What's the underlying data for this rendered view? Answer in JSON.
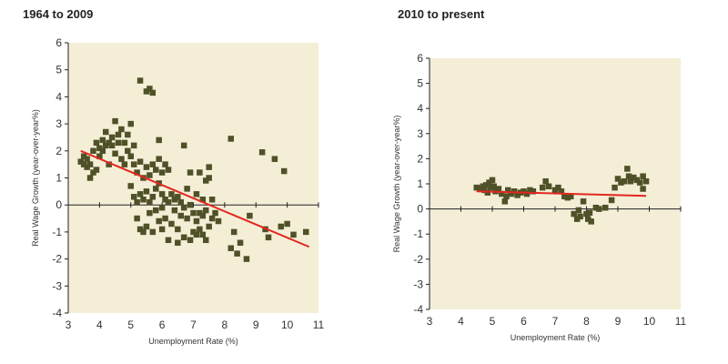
{
  "colors": {
    "plot_bg": "#f4eed7",
    "marker": "#4f5128",
    "trend": "#e3271f",
    "axis": "#222222"
  },
  "chart_data": [
    {
      "type": "scatter",
      "title": "1964 to 2009",
      "xlabel": "Unemployment Rate (%)",
      "ylabel": "Real Wage Growth (year-over-year%)",
      "xlim": [
        3,
        11
      ],
      "ylim": [
        -4,
        6
      ],
      "xticks": [
        3,
        4,
        5,
        6,
        7,
        8,
        9,
        10,
        11
      ],
      "yticks": [
        -4,
        -3,
        -2,
        -1,
        0,
        1,
        2,
        3,
        4,
        5,
        6
      ],
      "marker": "square",
      "grid": false,
      "trendline": {
        "x": [
          3.4,
          10.7
        ],
        "y": [
          2.0,
          -1.55
        ]
      },
      "points": [
        [
          3.4,
          1.6
        ],
        [
          3.5,
          1.5
        ],
        [
          3.5,
          1.8
        ],
        [
          3.6,
          1.4
        ],
        [
          3.6,
          1.7
        ],
        [
          3.7,
          1.0
        ],
        [
          3.7,
          1.5
        ],
        [
          3.8,
          1.2
        ],
        [
          3.8,
          2.0
        ],
        [
          3.9,
          1.3
        ],
        [
          3.9,
          2.3
        ],
        [
          4.0,
          1.8
        ],
        [
          4.0,
          2.1
        ],
        [
          4.1,
          2.4
        ],
        [
          4.1,
          2.0
        ],
        [
          4.2,
          2.2
        ],
        [
          4.2,
          2.7
        ],
        [
          4.3,
          2.3
        ],
        [
          4.3,
          1.5
        ],
        [
          4.4,
          2.5
        ],
        [
          4.4,
          2.2
        ],
        [
          4.5,
          3.1
        ],
        [
          4.5,
          1.9
        ],
        [
          4.6,
          2.3
        ],
        [
          4.6,
          2.6
        ],
        [
          4.7,
          1.7
        ],
        [
          4.7,
          2.8
        ],
        [
          4.8,
          2.3
        ],
        [
          4.8,
          1.5
        ],
        [
          4.9,
          2.0
        ],
        [
          4.9,
          2.6
        ],
        [
          5.0,
          1.8
        ],
        [
          5.0,
          3.0
        ],
        [
          5.0,
          0.7
        ],
        [
          5.1,
          1.5
        ],
        [
          5.1,
          0.3
        ],
        [
          5.1,
          2.2
        ],
        [
          5.2,
          0.1
        ],
        [
          5.2,
          -0.5
        ],
        [
          5.2,
          1.2
        ],
        [
          5.3,
          0.4
        ],
        [
          5.3,
          -0.9
        ],
        [
          5.3,
          1.6
        ],
        [
          5.3,
          4.6
        ],
        [
          5.4,
          -1.0
        ],
        [
          5.4,
          0.2
        ],
        [
          5.4,
          1.0
        ],
        [
          5.5,
          4.2
        ],
        [
          5.5,
          0.5
        ],
        [
          5.5,
          -0.8
        ],
        [
          5.5,
          1.4
        ],
        [
          5.6,
          4.3
        ],
        [
          5.6,
          0.1
        ],
        [
          5.6,
          -0.3
        ],
        [
          5.6,
          1.1
        ],
        [
          5.7,
          4.15
        ],
        [
          5.7,
          0.3
        ],
        [
          5.7,
          -1.0
        ],
        [
          5.7,
          1.5
        ],
        [
          5.8,
          0.6
        ],
        [
          5.8,
          -0.2
        ],
        [
          5.8,
          1.3
        ],
        [
          5.9,
          -0.6
        ],
        [
          5.9,
          0.8
        ],
        [
          5.9,
          2.4
        ],
        [
          5.9,
          1.7
        ],
        [
          6.0,
          -0.9
        ],
        [
          6.0,
          0.4
        ],
        [
          6.0,
          1.2
        ],
        [
          6.0,
          -0.1
        ],
        [
          6.1,
          1.5
        ],
        [
          6.1,
          0.2
        ],
        [
          6.1,
          -0.5
        ],
        [
          6.2,
          1.3
        ],
        [
          6.2,
          0.1
        ],
        [
          6.2,
          -1.3
        ],
        [
          6.3,
          0.4
        ],
        [
          6.3,
          -0.7
        ],
        [
          6.4,
          0.2
        ],
        [
          6.4,
          -0.2
        ],
        [
          6.5,
          -0.9
        ],
        [
          6.5,
          0.3
        ],
        [
          6.5,
          -1.4
        ],
        [
          6.6,
          -0.4
        ],
        [
          6.6,
          0.1
        ],
        [
          6.7,
          -1.2
        ],
        [
          6.7,
          2.2
        ],
        [
          6.7,
          -0.1
        ],
        [
          6.8,
          0.6
        ],
        [
          6.8,
          -0.5
        ],
        [
          6.9,
          -1.3
        ],
        [
          6.9,
          0.0
        ],
        [
          6.9,
          1.2
        ],
        [
          7.0,
          -0.3
        ],
        [
          7.0,
          -1.0
        ],
        [
          7.1,
          -0.6
        ],
        [
          7.1,
          -1.1
        ],
        [
          7.1,
          0.4
        ],
        [
          7.2,
          -0.9
        ],
        [
          7.2,
          -0.3
        ],
        [
          7.2,
          1.2
        ],
        [
          7.3,
          -1.1
        ],
        [
          7.3,
          -0.4
        ],
        [
          7.3,
          0.2
        ],
        [
          7.4,
          -1.3
        ],
        [
          7.4,
          -0.2
        ],
        [
          7.4,
          0.9
        ],
        [
          7.5,
          -0.8
        ],
        [
          7.5,
          1.0
        ],
        [
          7.5,
          1.4
        ],
        [
          7.6,
          0.2
        ],
        [
          7.6,
          -0.5
        ],
        [
          7.7,
          -0.3
        ],
        [
          7.8,
          -0.6
        ],
        [
          8.2,
          2.45
        ],
        [
          8.2,
          -1.6
        ],
        [
          8.3,
          -1.0
        ],
        [
          8.4,
          -1.8
        ],
        [
          8.5,
          -1.4
        ],
        [
          8.7,
          -2.0
        ],
        [
          8.8,
          -0.4
        ],
        [
          9.2,
          1.95
        ],
        [
          9.3,
          -0.9
        ],
        [
          9.4,
          -1.2
        ],
        [
          9.6,
          1.7
        ],
        [
          9.8,
          -0.8
        ],
        [
          9.9,
          1.25
        ],
        [
          10.0,
          -0.7
        ],
        [
          10.2,
          -1.1
        ],
        [
          10.6,
          -1.0
        ]
      ]
    },
    {
      "type": "scatter",
      "title": "2010 to present",
      "xlabel": "Unemployment Rate (%)",
      "ylabel": "Real Wage Growth (year-over-year%)",
      "xlim": [
        3,
        11
      ],
      "ylim": [
        -4,
        6
      ],
      "xticks": [
        3,
        4,
        5,
        6,
        7,
        8,
        9,
        10,
        11
      ],
      "yticks": [
        -4,
        -3,
        -2,
        -1,
        0,
        1,
        2,
        3,
        4,
        5,
        6
      ],
      "marker": "square",
      "grid": false,
      "trendline": {
        "x": [
          4.5,
          9.9
        ],
        "y": [
          0.7,
          0.52
        ]
      },
      "points": [
        [
          4.5,
          0.85
        ],
        [
          4.6,
          0.8
        ],
        [
          4.7,
          0.9
        ],
        [
          4.75,
          0.75
        ],
        [
          4.8,
          0.95
        ],
        [
          4.85,
          0.65
        ],
        [
          4.9,
          1.05
        ],
        [
          4.95,
          0.85
        ],
        [
          5.0,
          1.15
        ],
        [
          5.05,
          0.9
        ],
        [
          5.1,
          0.7
        ],
        [
          5.2,
          0.8
        ],
        [
          5.3,
          0.6
        ],
        [
          5.4,
          0.3
        ],
        [
          5.45,
          0.5
        ],
        [
          5.5,
          0.75
        ],
        [
          5.6,
          0.6
        ],
        [
          5.7,
          0.7
        ],
        [
          5.8,
          0.55
        ],
        [
          5.9,
          0.65
        ],
        [
          6.0,
          0.7
        ],
        [
          6.1,
          0.6
        ],
        [
          6.2,
          0.75
        ],
        [
          6.3,
          0.7
        ],
        [
          6.6,
          0.85
        ],
        [
          6.7,
          1.1
        ],
        [
          6.8,
          0.9
        ],
        [
          7.0,
          0.75
        ],
        [
          7.1,
          0.85
        ],
        [
          7.2,
          0.7
        ],
        [
          7.3,
          0.5
        ],
        [
          7.4,
          0.45
        ],
        [
          7.5,
          0.5
        ],
        [
          7.6,
          -0.2
        ],
        [
          7.7,
          -0.4
        ],
        [
          7.75,
          -0.05
        ],
        [
          7.8,
          -0.3
        ],
        [
          7.9,
          0.3
        ],
        [
          8.0,
          -0.2
        ],
        [
          8.05,
          -0.4
        ],
        [
          8.1,
          -0.15
        ],
        [
          8.15,
          -0.5
        ],
        [
          8.3,
          0.05
        ],
        [
          8.4,
          0.0
        ],
        [
          8.6,
          0.05
        ],
        [
          8.8,
          0.35
        ],
        [
          8.9,
          0.85
        ],
        [
          9.0,
          1.2
        ],
        [
          9.1,
          1.05
        ],
        [
          9.2,
          1.1
        ],
        [
          9.3,
          1.6
        ],
        [
          9.35,
          1.3
        ],
        [
          9.4,
          1.1
        ],
        [
          9.5,
          1.25
        ],
        [
          9.6,
          1.15
        ],
        [
          9.7,
          1.05
        ],
        [
          9.8,
          0.8
        ],
        [
          9.8,
          1.3
        ],
        [
          9.9,
          1.1
        ]
      ]
    }
  ]
}
